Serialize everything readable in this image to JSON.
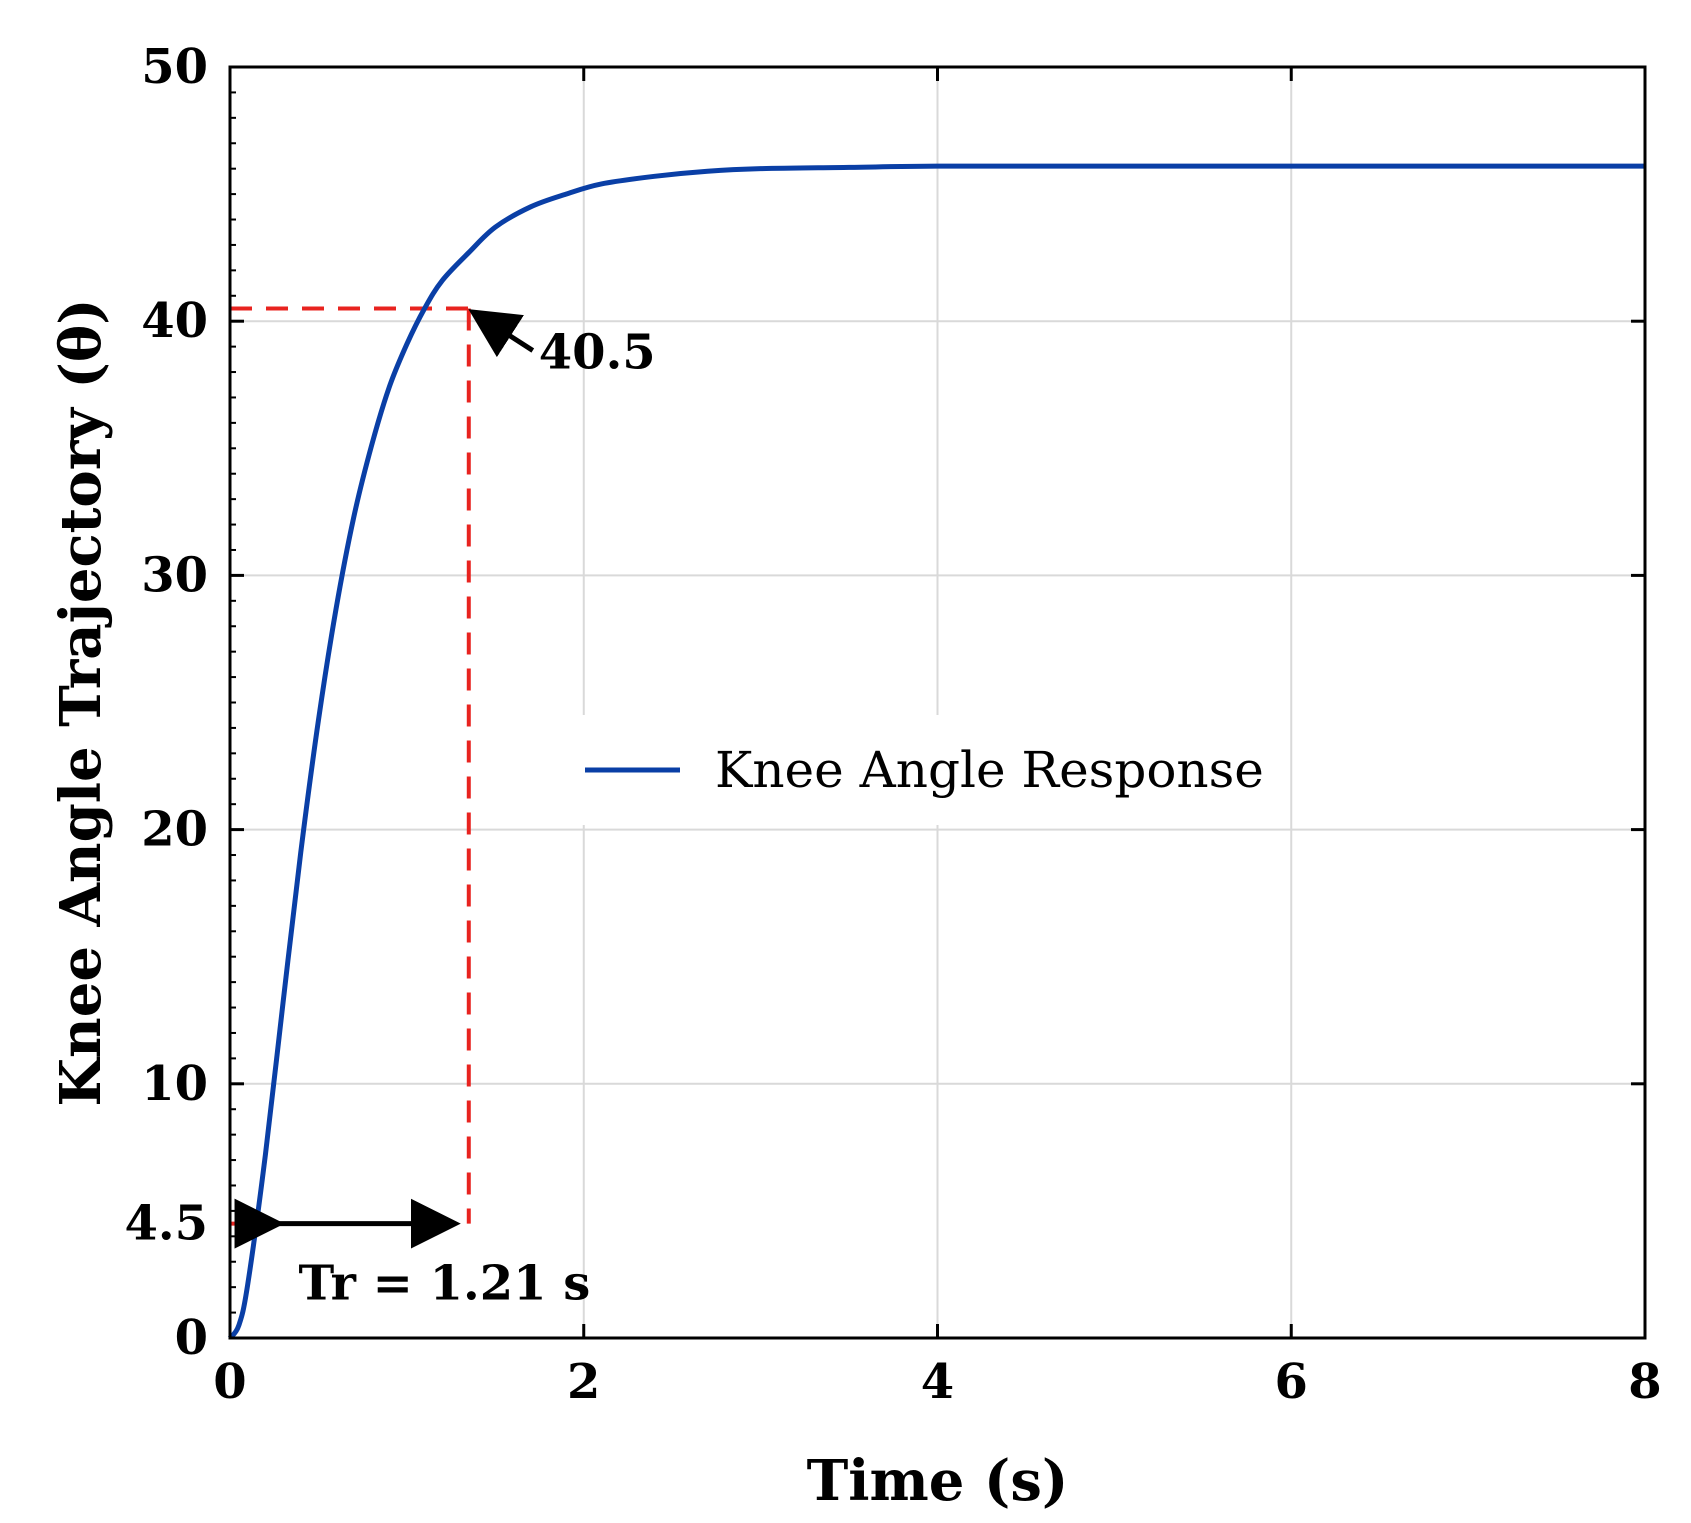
{
  "chart_data": {
    "type": "line",
    "title": "",
    "xlabel": "Time (s)",
    "ylabel": "Knee Angle Trajectory (θ)",
    "xlim": [
      0,
      8
    ],
    "ylim": [
      0,
      50
    ],
    "xticks": [
      0,
      2,
      4,
      6,
      8
    ],
    "xtick_labels": [
      "0",
      "2",
      "4",
      "6",
      "8"
    ],
    "yticks": [
      0,
      4.5,
      10,
      20,
      30,
      40,
      50
    ],
    "ytick_labels": [
      "0",
      "4.5",
      "10",
      "20",
      "30",
      "40",
      "50"
    ],
    "grid": true,
    "legend": {
      "position": "center-right",
      "entries": [
        "Knee Angle Response"
      ]
    },
    "series": [
      {
        "name": "Knee Angle Response",
        "color": "#0a3fa6",
        "x": [
          0,
          0.05,
          0.1,
          0.2,
          0.3,
          0.4,
          0.5,
          0.6,
          0.7,
          0.8,
          0.9,
          1.0,
          1.1,
          1.2,
          1.35,
          1.5,
          1.7,
          1.9,
          2.1,
          2.4,
          2.7,
          3.0,
          3.5,
          4.0,
          5.0,
          6.0,
          7.0,
          8.0
        ],
        "y": [
          0,
          0.5,
          2.1,
          7.2,
          13.2,
          19.1,
          24.3,
          28.7,
          32.3,
          35.1,
          37.4,
          39.1,
          40.5,
          41.6,
          42.7,
          43.7,
          44.5,
          45.0,
          45.4,
          45.7,
          45.9,
          46.0,
          46.05,
          46.1,
          46.1,
          46.1,
          46.1,
          46.1
        ]
      }
    ],
    "reference_lines": {
      "color": "#e8231f",
      "lower": {
        "x": 0.2,
        "y": 4.5
      },
      "upper": {
        "x": 1.35,
        "y": 40.5
      }
    },
    "annotations": [
      {
        "text": "40.5",
        "x": 1.35,
        "y": 40.5
      },
      {
        "text": "Tr = 1.21 s",
        "x_start": 0.15,
        "x_end": 1.35,
        "y": 4.5
      }
    ]
  }
}
